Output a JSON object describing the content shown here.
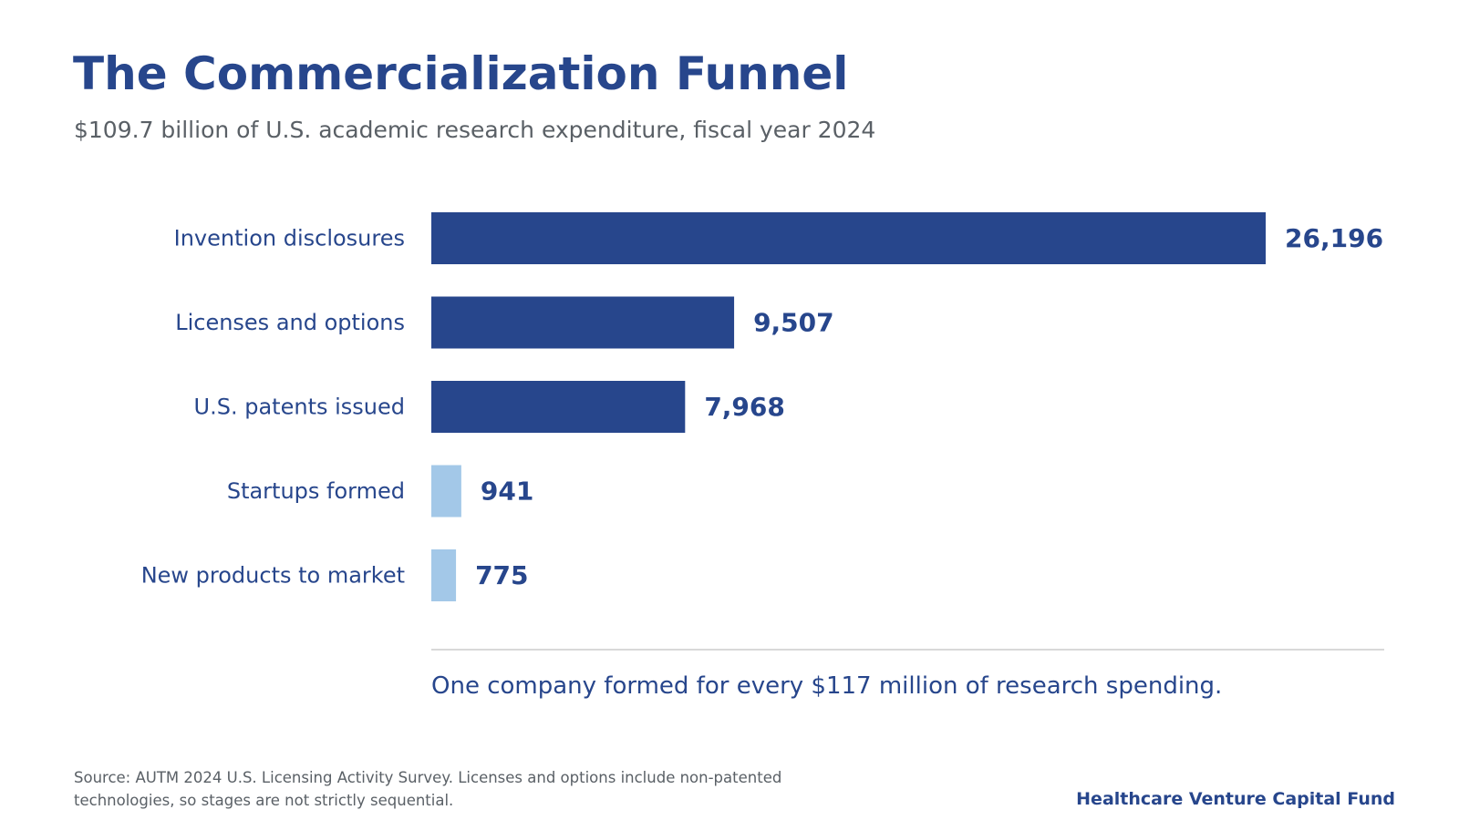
{
  "header": {
    "title": "The Commercialization Funnel",
    "subtitle": "$109.7 billion of U.S. academic research expenditure, fiscal year 2024"
  },
  "chart_data": {
    "type": "bar",
    "orientation": "horizontal",
    "categories": [
      "Invention disclosures",
      "Licenses and options",
      "U.S. patents issued",
      "Startups formed",
      "New products to market"
    ],
    "values": [
      26196,
      9507,
      7968,
      941,
      775
    ],
    "value_labels": [
      "26,196",
      "9,507",
      "7,968",
      "941",
      "775"
    ],
    "bar_colors": [
      "#27468c",
      "#27468c",
      "#27468c",
      "#a3c8e8",
      "#a3c8e8"
    ],
    "xlim": [
      0,
      26196
    ],
    "grid": false,
    "legend": "none"
  },
  "callout": "One company formed for every $117 million of research spending.",
  "footer": {
    "source_line1": "Source: AUTM 2024 U.S. Licensing Activity Survey. Licenses and options include non-patented",
    "source_line2": "technologies, so stages are not strictly sequential.",
    "brand": "Healthcare Venture Capital Fund"
  },
  "colors": {
    "primary": "#27468c",
    "highlight": "#a3c8e8",
    "muted_text": "#5a6066",
    "divider": "#d9d9d9"
  }
}
